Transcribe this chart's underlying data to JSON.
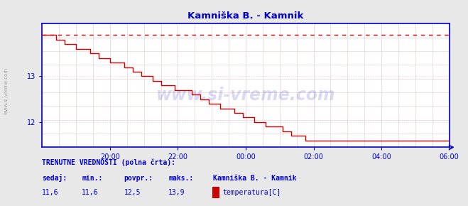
{
  "title": "Kamniška B. - Kamnik",
  "bg_color": "#e8e8e8",
  "plot_bg_color": "#ffffff",
  "line_color": "#cc0000",
  "dashed_color": "#cc0000",
  "axis_color": "#0000cc",
  "text_color": "#0000cc",
  "watermark": "www.si-vreme.com",
  "x_tick_labels": [
    "20:00",
    "22:00",
    "00:00",
    "02:00",
    "04:00",
    "06:00"
  ],
  "x_tick_positions": [
    24,
    48,
    72,
    96,
    120,
    144
  ],
  "y_ticks": [
    12,
    13
  ],
  "ylim_min": 11.45,
  "ylim_max": 14.15,
  "xlim_min": 0,
  "xlim_max": 144,
  "max_val": 13.9,
  "min_val": 11.6,
  "legend_label": "temperatura[C]",
  "station_name": "Kamniška B. - Kamnik",
  "footer_label1": "TRENUTNE VREDNOSTI (polna črta):",
  "footer_sedaj": "sedaj:",
  "footer_min": "min.:",
  "footer_povpr": "povpr.:",
  "footer_maks": "maks.:",
  "val_sedaj": "11,6",
  "val_min": "11,6",
  "val_povpr": "12,5",
  "val_maks": "13,9",
  "n_points": 145,
  "time_start": 0,
  "time_end": 144,
  "fine_grid_color": "#f0d8d8",
  "coarse_grid_color": "#d8d8f0"
}
